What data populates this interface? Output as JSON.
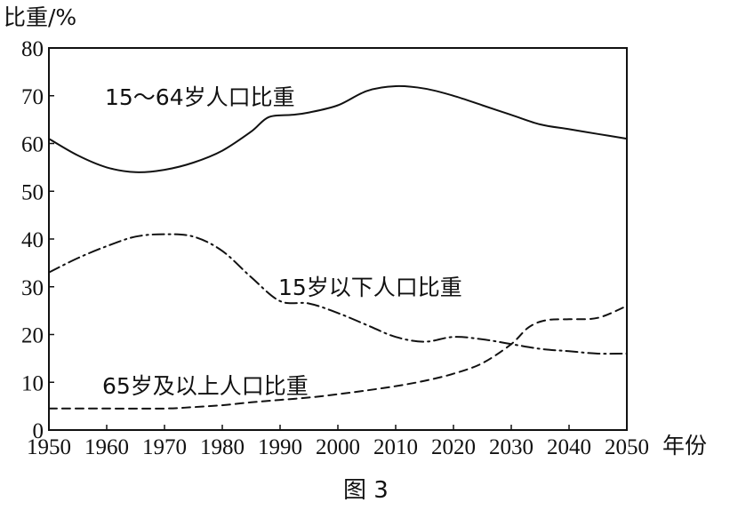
{
  "chart_data": {
    "type": "line",
    "ylabel": "比重/%",
    "xlabel": "年份",
    "caption": "图 3",
    "xlim": [
      1950,
      2050
    ],
    "ylim": [
      0,
      80
    ],
    "x_ticks": [
      1950,
      1960,
      1970,
      1980,
      1990,
      2000,
      2010,
      2020,
      2030,
      2040,
      2050
    ],
    "y_ticks": [
      0,
      10,
      20,
      30,
      40,
      50,
      60,
      70,
      80
    ],
    "grid": false,
    "legend": "none",
    "series": [
      {
        "name": "15～64岁人口比重",
        "style": "solid",
        "x": [
          1950,
          1955,
          1960,
          1965,
          1970,
          1975,
          1980,
          1985,
          1988,
          1992,
          1995,
          2000,
          2005,
          2010,
          2015,
          2020,
          2025,
          2030,
          2035,
          2040,
          2045,
          2050
        ],
        "y": [
          61,
          57.5,
          55,
          54,
          54.5,
          56,
          58.5,
          62.5,
          65.5,
          66,
          66.5,
          68,
          71,
          72,
          71.5,
          70,
          68,
          66,
          64,
          63,
          62,
          61
        ]
      },
      {
        "name": "15岁以下人口比重",
        "style": "dash-dot",
        "x": [
          1950,
          1955,
          1960,
          1965,
          1970,
          1975,
          1980,
          1985,
          1990,
          1995,
          2000,
          2005,
          2010,
          2015,
          2020,
          2025,
          2030,
          2035,
          2040,
          2045,
          2050
        ],
        "y": [
          33,
          36,
          38.5,
          40.5,
          41,
          40.5,
          37.5,
          32,
          27,
          26.5,
          24.5,
          22,
          19.5,
          18.5,
          19.5,
          19,
          18,
          17,
          16.5,
          16,
          16
        ]
      },
      {
        "name": "65岁及以上人口比重",
        "style": "dashed",
        "x": [
          1950,
          1960,
          1970,
          1975,
          1980,
          1985,
          1990,
          1995,
          2000,
          2005,
          2010,
          2015,
          2020,
          2025,
          2030,
          2033,
          2036,
          2040,
          2045,
          2050
        ],
        "y": [
          4.5,
          4.5,
          4.5,
          4.8,
          5.2,
          5.8,
          6.3,
          6.8,
          7.5,
          8.3,
          9.2,
          10.3,
          11.8,
          14,
          18,
          21.5,
          23,
          23.2,
          23.5,
          26
        ]
      }
    ],
    "colors": {
      "line": "#111111",
      "background": "#ffffff"
    }
  }
}
